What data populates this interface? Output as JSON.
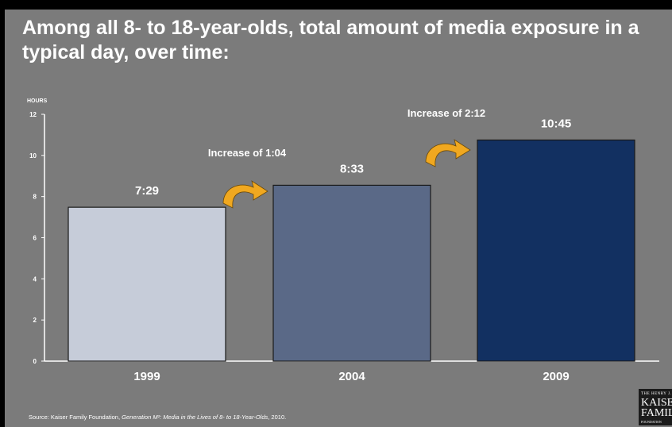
{
  "slide": {
    "title": "Among all 8- to 18-year-olds, total amount of media exposure in a typical day, over time:",
    "source_prefix": "Source: Kaiser Family Foundation, ",
    "source_publication": "Generation M²: Media in the Lives of 8- to 18-Year-Olds",
    "source_suffix": ", 2010.",
    "logo_lines": [
      "THE HENRY J.",
      "KAISER",
      "FAMILY",
      "FOUNDATION"
    ]
  },
  "colors": {
    "background": "#7b7b7b",
    "bar_1999": "#c6ccd9",
    "bar_2004": "#5a6987",
    "bar_2009": "#123061",
    "arrow": "#f0a820",
    "text": "#ffffff"
  },
  "chart_data": {
    "type": "bar",
    "ylabel": "HOURS",
    "ylim": [
      0,
      12
    ],
    "yticks": [
      0,
      2,
      4,
      6,
      8,
      10,
      12
    ],
    "grid": false,
    "categories": [
      "1999",
      "2004",
      "2009"
    ],
    "values": [
      7.48,
      8.55,
      10.75
    ],
    "value_labels": [
      "7:29",
      "8:33",
      "10:45"
    ],
    "annotations": [
      {
        "text": "Increase of 1:04",
        "from": "1999",
        "to": "2004"
      },
      {
        "text": "Increase of 2:12",
        "from": "2004",
        "to": "2009"
      }
    ]
  }
}
